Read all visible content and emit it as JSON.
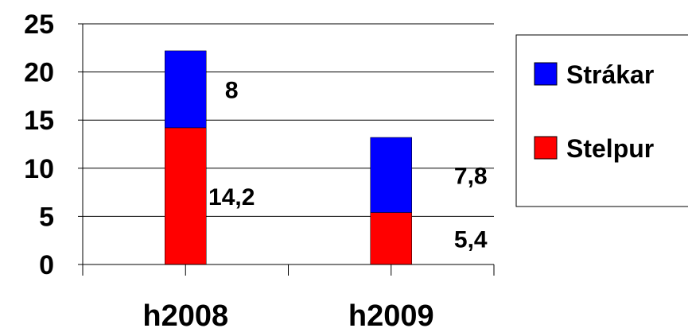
{
  "chart_data": {
    "type": "bar",
    "stacked": true,
    "categories": [
      "h2008",
      "h2009"
    ],
    "series": [
      {
        "name": "Stelpur",
        "values": [
          14.2,
          5.4
        ],
        "labels": [
          "14,2",
          "5,4"
        ],
        "color": "#ff0000"
      },
      {
        "name": "Strákar",
        "values": [
          8,
          7.8
        ],
        "labels": [
          "8",
          "7,8"
        ],
        "color": "#0000ff"
      }
    ],
    "ylim": [
      0,
      25
    ],
    "yticks": [
      0,
      5,
      10,
      15,
      20,
      25
    ],
    "grid": true,
    "legend": "right",
    "legend_order": [
      "Strákar",
      "Stelpur"
    ],
    "title": "",
    "xlabel": "",
    "ylabel": ""
  }
}
